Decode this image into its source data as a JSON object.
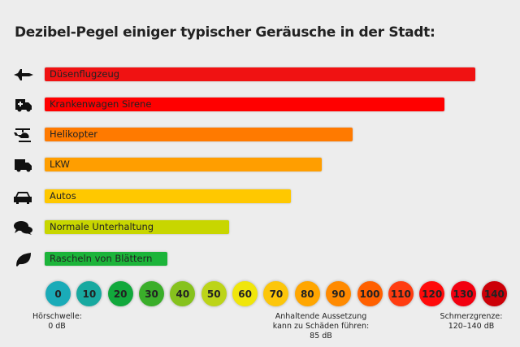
{
  "chart_data": {
    "type": "bar",
    "orientation": "horizontal",
    "title": "Dezibel-Pegel einiger typischer Geräusche in der Stadt:",
    "categories": [
      "Düsenflugzeug",
      "Krankenwagen Sirene",
      "Helikopter",
      "LKW",
      "Autos",
      "Normale Unterhaltung",
      "Rascheln von Blättern"
    ],
    "values": [
      140,
      130,
      100,
      90,
      80,
      60,
      40
    ],
    "unit": "dB",
    "xlim": [
      0,
      140
    ],
    "bar_colors": [
      "#f01212",
      "#ff0000",
      "#ff7a00",
      "#ff9e00",
      "#ffc800",
      "#c8d600",
      "#1cb43a"
    ],
    "icons": [
      "jet-plane-icon",
      "ambulance-icon",
      "helicopter-icon",
      "truck-icon",
      "car-icon",
      "speech-bubbles-icon",
      "leaf-icon"
    ],
    "scale": {
      "ticks": [
        "0",
        "10",
        "20",
        "30",
        "40",
        "50",
        "60",
        "70",
        "80",
        "90",
        "100",
        "110",
        "120",
        "130",
        "140"
      ],
      "colors": [
        "#1aabb8",
        "#18a9a0",
        "#11a83c",
        "#3aae2a",
        "#86c21d",
        "#bcd418",
        "#f0e60a",
        "#fcc60a",
        "#ffa600",
        "#ff8a00",
        "#ff6000",
        "#ff3c10",
        "#ff0a0a",
        "#f20010",
        "#cc0008"
      ]
    },
    "annotations": [
      {
        "line1": "Hörschwelle:",
        "line2": "0 dB",
        "line3": ""
      },
      {
        "line1": "Anhaltende Aussetzung",
        "line2": "kann zu Schäden führen:",
        "line3": "85 dB"
      },
      {
        "line1": "Schmerzgrenze:",
        "line2": "120–140 dB",
        "line3": ""
      }
    ]
  }
}
